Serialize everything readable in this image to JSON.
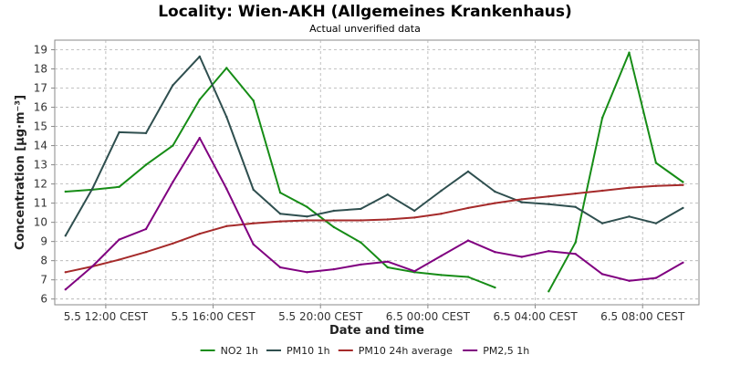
{
  "chart_data": {
    "type": "line",
    "title": "Locality: Wien-AKH (Allgemeines Krankenhaus)",
    "subtitle": "Actual unverified data",
    "xlabel": "Date and time",
    "ylabel": "Concentration [µg·m⁻³]",
    "ylim": [
      5.7,
      19.5
    ],
    "xlim": [
      10.1,
      34.1
    ],
    "grid": true,
    "legend_position": "bottom",
    "x_ticks": [
      {
        "x": 12,
        "label": "5.5 12:00 CEST"
      },
      {
        "x": 16,
        "label": "5.5 16:00 CEST"
      },
      {
        "x": 20,
        "label": "5.5 20:00 CEST"
      },
      {
        "x": 24,
        "label": "6.5 00:00 CEST"
      },
      {
        "x": 28,
        "label": "6.5 04:00 CEST"
      },
      {
        "x": 32,
        "label": "6.5 08:00 CEST"
      }
    ],
    "y_ticks": [
      6,
      7,
      8,
      9,
      10,
      11,
      12,
      13,
      14,
      15,
      16,
      17,
      18,
      19
    ],
    "series": [
      {
        "name": "NO2 1h",
        "color": "#168c16",
        "points": [
          [
            10.5,
            11.6
          ],
          [
            11.5,
            11.7
          ],
          [
            12.5,
            11.85
          ],
          [
            13.5,
            13.0
          ],
          [
            14.5,
            14.0
          ],
          [
            15.5,
            16.4
          ],
          [
            16.5,
            18.05
          ],
          [
            17.5,
            16.35
          ],
          [
            18.5,
            11.55
          ],
          [
            19.5,
            10.8
          ],
          [
            20.5,
            9.75
          ],
          [
            21.5,
            8.95
          ],
          [
            22.5,
            7.65
          ],
          [
            23.5,
            7.4
          ],
          [
            24.5,
            7.25
          ],
          [
            25.5,
            7.15
          ],
          [
            26.5,
            6.6
          ],
          [
            27.5,
            null
          ],
          [
            28.5,
            6.4
          ],
          [
            29.5,
            8.95
          ],
          [
            30.5,
            15.45
          ],
          [
            31.5,
            18.85
          ],
          [
            32.5,
            13.1
          ],
          [
            33.5,
            12.1
          ]
        ]
      },
      {
        "name": "PM10 1h",
        "color": "#2f4f4f",
        "points": [
          [
            10.5,
            9.3
          ],
          [
            11.5,
            11.75
          ],
          [
            12.5,
            14.7
          ],
          [
            13.5,
            14.65
          ],
          [
            14.5,
            17.15
          ],
          [
            15.5,
            18.65
          ],
          [
            16.5,
            15.5
          ],
          [
            17.5,
            11.7
          ],
          [
            18.5,
            10.45
          ],
          [
            19.5,
            10.3
          ],
          [
            20.5,
            10.6
          ],
          [
            21.5,
            10.7
          ],
          [
            22.5,
            11.45
          ],
          [
            23.5,
            10.6
          ],
          [
            24.5,
            11.65
          ],
          [
            25.5,
            12.65
          ],
          [
            26.5,
            11.6
          ],
          [
            27.5,
            11.05
          ],
          [
            28.5,
            10.95
          ],
          [
            29.5,
            10.8
          ],
          [
            30.5,
            9.95
          ],
          [
            31.5,
            10.3
          ],
          [
            32.5,
            9.95
          ],
          [
            33.5,
            10.75
          ]
        ]
      },
      {
        "name": "PM10 24h average",
        "color": "#a52a2a",
        "points": [
          [
            10.5,
            7.4
          ],
          [
            11.5,
            7.7
          ],
          [
            12.5,
            8.05
          ],
          [
            13.5,
            8.45
          ],
          [
            14.5,
            8.9
          ],
          [
            15.5,
            9.4
          ],
          [
            16.5,
            9.8
          ],
          [
            17.5,
            9.95
          ],
          [
            18.5,
            10.05
          ],
          [
            19.5,
            10.1
          ],
          [
            20.5,
            10.1
          ],
          [
            21.5,
            10.1
          ],
          [
            22.5,
            10.15
          ],
          [
            23.5,
            10.25
          ],
          [
            24.5,
            10.45
          ],
          [
            25.5,
            10.75
          ],
          [
            26.5,
            11.0
          ],
          [
            27.5,
            11.2
          ],
          [
            28.5,
            11.35
          ],
          [
            29.5,
            11.5
          ],
          [
            30.5,
            11.65
          ],
          [
            31.5,
            11.8
          ],
          [
            32.5,
            11.9
          ],
          [
            33.5,
            11.95
          ]
        ]
      },
      {
        "name": "PM2,5 1h",
        "color": "#800080",
        "points": [
          [
            10.5,
            6.5
          ],
          [
            11.5,
            7.7
          ],
          [
            12.5,
            9.1
          ],
          [
            13.5,
            9.65
          ],
          [
            14.5,
            12.1
          ],
          [
            15.5,
            14.4
          ],
          [
            16.5,
            11.75
          ],
          [
            17.5,
            8.85
          ],
          [
            18.5,
            7.65
          ],
          [
            19.5,
            7.4
          ],
          [
            20.5,
            7.55
          ],
          [
            21.5,
            7.8
          ],
          [
            22.5,
            7.95
          ],
          [
            23.5,
            7.45
          ],
          [
            24.5,
            8.25
          ],
          [
            25.5,
            9.05
          ],
          [
            26.5,
            8.45
          ],
          [
            27.5,
            8.2
          ],
          [
            28.5,
            8.5
          ],
          [
            29.5,
            8.35
          ],
          [
            30.5,
            7.3
          ],
          [
            31.5,
            6.95
          ],
          [
            32.5,
            7.1
          ],
          [
            33.5,
            7.9
          ]
        ]
      }
    ]
  }
}
